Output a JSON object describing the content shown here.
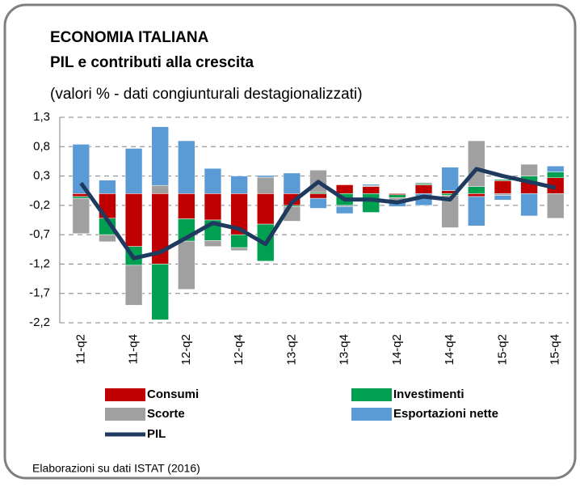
{
  "chart_data": {
    "type": "bar",
    "title": "ECONOMIA ITALIANA",
    "subtitle": "PIL e contributi alla crescita",
    "subtitle2": "(valori % - dati congiunturali destagionalizzati)",
    "source": "Elaborazioni su dati ISTAT (2016)",
    "stacked": true,
    "grid": true,
    "categories": [
      "11-q2",
      null,
      "11-q4",
      null,
      "12-q2",
      null,
      "12-q4",
      null,
      "13-q2",
      null,
      "13-q4",
      null,
      "14-q2",
      null,
      "14-q4",
      null,
      "15-q2",
      null,
      "15-q4"
    ],
    "ylim": [
      -2.2,
      1.3
    ],
    "yticks": [
      {
        "value": 1.3,
        "label": "1,3"
      },
      {
        "value": 0.8,
        "label": "0,8"
      },
      {
        "value": 0.3,
        "label": "0,3"
      },
      {
        "value": -0.2,
        "label": "-0,2"
      },
      {
        "value": -0.7,
        "label": "-0,7"
      },
      {
        "value": -1.2,
        "label": "-1,2"
      },
      {
        "value": -1.7,
        "label": "-1,7"
      },
      {
        "value": -2.2,
        "label": "-2,2"
      }
    ],
    "series": [
      {
        "name": "Consumi",
        "type": "bar",
        "color": "#c00000",
        "values": [
          -0.05,
          -0.42,
          -0.9,
          -1.2,
          -0.43,
          -0.45,
          -0.7,
          -0.52,
          -0.2,
          -0.08,
          0.15,
          0.12,
          -0.02,
          0.15,
          0.05,
          -0.05,
          0.22,
          0.2,
          0.27
        ]
      },
      {
        "name": "Investimenti",
        "type": "bar",
        "color": "#00a050",
        "values": [
          -0.03,
          -0.28,
          -0.32,
          -0.95,
          -0.38,
          -0.35,
          -0.22,
          -0.63,
          -0.02,
          0.02,
          -0.2,
          -0.32,
          -0.05,
          0.02,
          -0.03,
          0.12,
          0.02,
          0.1,
          0.1
        ]
      },
      {
        "name": "Scorte",
        "type": "bar",
        "color": "#a0a0a0",
        "values": [
          -0.6,
          -0.12,
          -0.68,
          0.14,
          -0.82,
          -0.1,
          -0.05,
          0.28,
          -0.25,
          0.38,
          -0.02,
          0.02,
          -0.05,
          0.02,
          -0.55,
          0.78,
          -0.03,
          0.2,
          -0.42
        ]
      },
      {
        "name": "Esportazioni nette",
        "type": "bar",
        "color": "#5b9bd5",
        "values": [
          0.84,
          0.23,
          0.77,
          1.0,
          0.9,
          0.43,
          0.3,
          0.03,
          0.35,
          -0.17,
          -0.12,
          0.02,
          -0.1,
          -0.2,
          0.4,
          -0.5,
          -0.08,
          -0.38,
          0.1
        ]
      },
      {
        "name": "PIL",
        "type": "line",
        "color": "#1f3a5f",
        "values": [
          0.18,
          -0.45,
          -1.1,
          -1.0,
          -0.75,
          -0.5,
          -0.6,
          -0.86,
          -0.15,
          0.2,
          -0.1,
          -0.1,
          -0.15,
          -0.05,
          -0.1,
          0.42,
          0.3,
          0.2,
          0.1
        ]
      }
    ]
  }
}
